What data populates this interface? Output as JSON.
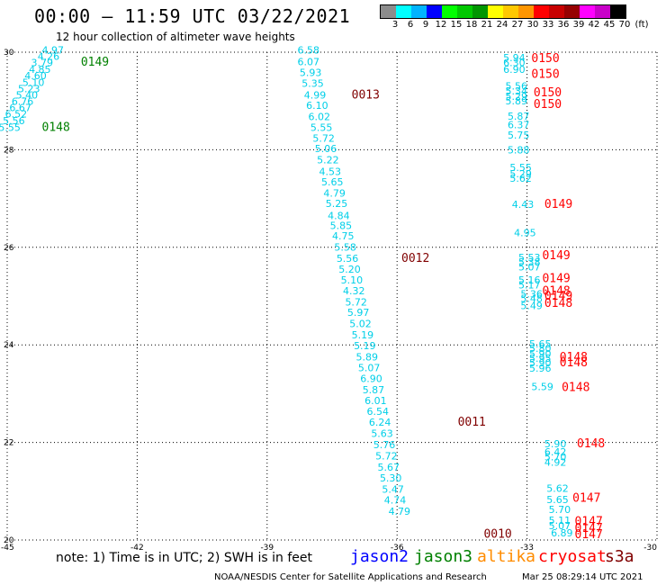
{
  "header": {
    "title": "00:00 – 11:59 UTC 03/22/2021",
    "subtitle": "12 hour collection of altimeter wave heights"
  },
  "color_scale": {
    "colors": [
      "#8c8c8c",
      "#00ffff",
      "#00b4ff",
      "#0000ff",
      "#00ff00",
      "#00c800",
      "#009600",
      "#ffff00",
      "#ffc800",
      "#ff9600",
      "#ff0000",
      "#c80000",
      "#960000",
      "#ff00ff",
      "#c800c8",
      "#000000"
    ],
    "labels": [
      "3",
      "6",
      "9",
      "12",
      "15",
      "18",
      "21",
      "24",
      "27",
      "30",
      "33",
      "36",
      "39",
      "42",
      "45",
      "70",
      "(ft)"
    ]
  },
  "axes": {
    "x_ticks": [
      "-45",
      "-42",
      "-39",
      "-36",
      "-33",
      "-30"
    ],
    "y_ticks": [
      "30",
      "28",
      "26",
      "24",
      "22",
      "20"
    ]
  },
  "observations": [
    {
      "lon": -44.2,
      "lat": 29.97,
      "v": "4.97"
    },
    {
      "lon": -44.3,
      "lat": 29.84,
      "v": "4.26"
    },
    {
      "lon": -44.45,
      "lat": 29.71,
      "v": "3.79"
    },
    {
      "lon": -44.5,
      "lat": 29.58,
      "v": "4.85"
    },
    {
      "lon": -44.6,
      "lat": 29.45,
      "v": "4.60"
    },
    {
      "lon": -44.65,
      "lat": 29.31,
      "v": "5.10"
    },
    {
      "lon": -44.75,
      "lat": 29.18,
      "v": "5.23"
    },
    {
      "lon": -44.8,
      "lat": 29.05,
      "v": "5.40"
    },
    {
      "lon": -44.9,
      "lat": 28.92,
      "v": "6.76"
    },
    {
      "lon": -44.95,
      "lat": 28.79,
      "v": "6.67"
    },
    {
      "lon": -45.05,
      "lat": 28.66,
      "v": "6.52"
    },
    {
      "lon": -45.1,
      "lat": 28.52,
      "v": "5.56"
    },
    {
      "lon": -45.2,
      "lat": 28.39,
      "v": "5.55"
    },
    {
      "lon": -38.3,
      "lat": 29.97,
      "v": "6.58"
    },
    {
      "lon": -38.3,
      "lat": 29.73,
      "v": "6.07"
    },
    {
      "lon": -38.25,
      "lat": 29.51,
      "v": "5.93"
    },
    {
      "lon": -38.2,
      "lat": 29.29,
      "v": "5.35"
    },
    {
      "lon": -38.15,
      "lat": 29.05,
      "v": "4.99"
    },
    {
      "lon": -38.1,
      "lat": 28.84,
      "v": "6.10"
    },
    {
      "lon": -38.05,
      "lat": 28.61,
      "v": "6.02"
    },
    {
      "lon": -38.0,
      "lat": 28.39,
      "v": "5.55"
    },
    {
      "lon": -37.95,
      "lat": 28.16,
      "v": "5.72"
    },
    {
      "lon": -37.9,
      "lat": 27.95,
      "v": "5.06"
    },
    {
      "lon": -37.85,
      "lat": 27.72,
      "v": "5.22"
    },
    {
      "lon": -37.8,
      "lat": 27.48,
      "v": "4.53"
    },
    {
      "lon": -37.75,
      "lat": 27.27,
      "v": "5.65"
    },
    {
      "lon": -37.7,
      "lat": 27.04,
      "v": "4.79"
    },
    {
      "lon": -37.65,
      "lat": 26.83,
      "v": "5.25"
    },
    {
      "lon": -37.6,
      "lat": 26.58,
      "v": "4.84"
    },
    {
      "lon": -37.55,
      "lat": 26.37,
      "v": "5.85"
    },
    {
      "lon": -37.5,
      "lat": 26.16,
      "v": "4.75"
    },
    {
      "lon": -37.45,
      "lat": 25.93,
      "v": "5.58"
    },
    {
      "lon": -37.4,
      "lat": 25.7,
      "v": "5.56"
    },
    {
      "lon": -37.35,
      "lat": 25.48,
      "v": "5.20"
    },
    {
      "lon": -37.3,
      "lat": 25.26,
      "v": "5.10"
    },
    {
      "lon": -37.25,
      "lat": 25.04,
      "v": "4.32"
    },
    {
      "lon": -37.2,
      "lat": 24.81,
      "v": "5.72"
    },
    {
      "lon": -37.15,
      "lat": 24.59,
      "v": "5.97"
    },
    {
      "lon": -37.1,
      "lat": 24.36,
      "v": "5.02"
    },
    {
      "lon": -37.05,
      "lat": 24.13,
      "v": "5.19"
    },
    {
      "lon": -37.0,
      "lat": 23.91,
      "v": "5.19"
    },
    {
      "lon": -36.95,
      "lat": 23.68,
      "v": "5.89"
    },
    {
      "lon": -36.9,
      "lat": 23.46,
      "v": "5.07"
    },
    {
      "lon": -36.85,
      "lat": 23.24,
      "v": "6.90"
    },
    {
      "lon": -36.8,
      "lat": 23.01,
      "v": "5.87"
    },
    {
      "lon": -36.75,
      "lat": 22.79,
      "v": "6.01"
    },
    {
      "lon": -36.7,
      "lat": 22.56,
      "v": "6.54"
    },
    {
      "lon": -36.65,
      "lat": 22.34,
      "v": "6.24"
    },
    {
      "lon": -36.6,
      "lat": 22.11,
      "v": "5.63"
    },
    {
      "lon": -36.55,
      "lat": 21.88,
      "v": "5.76"
    },
    {
      "lon": -36.5,
      "lat": 21.65,
      "v": "5.72"
    },
    {
      "lon": -36.45,
      "lat": 21.42,
      "v": "5.67"
    },
    {
      "lon": -36.4,
      "lat": 21.2,
      "v": "5.30"
    },
    {
      "lon": -36.35,
      "lat": 20.97,
      "v": "5.47"
    },
    {
      "lon": -36.3,
      "lat": 20.75,
      "v": "4.74"
    },
    {
      "lon": -36.2,
      "lat": 20.52,
      "v": "4.79"
    },
    {
      "lon": -33.55,
      "lat": 29.82,
      "v": "5.94"
    },
    {
      "lon": -33.55,
      "lat": 29.71,
      "v": "6.30"
    },
    {
      "lon": -33.55,
      "lat": 29.58,
      "v": "6.90"
    },
    {
      "lon": -33.5,
      "lat": 29.23,
      "v": "5.56"
    },
    {
      "lon": -33.5,
      "lat": 29.13,
      "v": "5.34"
    },
    {
      "lon": -33.5,
      "lat": 29.02,
      "v": "5.29"
    },
    {
      "lon": -33.5,
      "lat": 28.93,
      "v": "5.89"
    },
    {
      "lon": -33.45,
      "lat": 28.62,
      "v": "5.87"
    },
    {
      "lon": -33.45,
      "lat": 28.44,
      "v": "6.37"
    },
    {
      "lon": -33.45,
      "lat": 28.23,
      "v": "5.75"
    },
    {
      "lon": -33.45,
      "lat": 27.92,
      "v": "5.88"
    },
    {
      "lon": -33.4,
      "lat": 27.56,
      "v": "5.55"
    },
    {
      "lon": -33.4,
      "lat": 27.44,
      "v": "5.29"
    },
    {
      "lon": -33.4,
      "lat": 27.34,
      "v": "5.62"
    },
    {
      "lon": -33.35,
      "lat": 26.81,
      "v": "4.43"
    },
    {
      "lon": -33.3,
      "lat": 26.23,
      "v": "4.95"
    },
    {
      "lon": -33.2,
      "lat": 25.72,
      "v": "5.53"
    },
    {
      "lon": -33.2,
      "lat": 25.63,
      "v": "5.38"
    },
    {
      "lon": -33.2,
      "lat": 25.53,
      "v": "5.07"
    },
    {
      "lon": -33.2,
      "lat": 25.26,
      "v": "5.16"
    },
    {
      "lon": -33.2,
      "lat": 25.16,
      "v": "5.17"
    },
    {
      "lon": -33.15,
      "lat": 24.97,
      "v": "5.36"
    },
    {
      "lon": -33.15,
      "lat": 24.88,
      "v": "5.48"
    },
    {
      "lon": -33.15,
      "lat": 24.73,
      "v": "5.49"
    },
    {
      "lon": -32.95,
      "lat": 23.95,
      "v": "5.65"
    },
    {
      "lon": -32.95,
      "lat": 23.86,
      "v": "5.80"
    },
    {
      "lon": -32.95,
      "lat": 23.75,
      "v": "5.90"
    },
    {
      "lon": -32.95,
      "lat": 23.65,
      "v": "5.95"
    },
    {
      "lon": -32.95,
      "lat": 23.56,
      "v": "5.90"
    },
    {
      "lon": -32.95,
      "lat": 23.45,
      "v": "5.96"
    },
    {
      "lon": -32.9,
      "lat": 23.07,
      "v": "5.59"
    },
    {
      "lon": -32.6,
      "lat": 21.9,
      "v": "5.90"
    },
    {
      "lon": -32.6,
      "lat": 21.73,
      "v": "6.42"
    },
    {
      "lon": -32.6,
      "lat": 21.63,
      "v": "5.70"
    },
    {
      "lon": -32.6,
      "lat": 21.52,
      "v": "4.92"
    },
    {
      "lon": -32.55,
      "lat": 20.99,
      "v": "5.62"
    },
    {
      "lon": -32.55,
      "lat": 20.76,
      "v": "5.65"
    },
    {
      "lon": -32.5,
      "lat": 20.55,
      "v": "5.70"
    },
    {
      "lon": -32.5,
      "lat": 20.33,
      "v": "5.11"
    },
    {
      "lon": -32.5,
      "lat": 20.22,
      "v": "5.07"
    },
    {
      "lon": -32.45,
      "lat": 20.07,
      "v": "6.89"
    }
  ],
  "passes": [
    {
      "lon": -43.3,
      "lat": 29.72,
      "id": "0149",
      "color": "#008000"
    },
    {
      "lon": -44.2,
      "lat": 28.39,
      "id": "0148",
      "color": "#008000"
    },
    {
      "lon": -37.05,
      "lat": 29.05,
      "id": "0013",
      "color": "#800000"
    },
    {
      "lon": -35.9,
      "lat": 25.7,
      "id": "0012",
      "color": "#800000"
    },
    {
      "lon": -34.6,
      "lat": 22.34,
      "id": "0011",
      "color": "#800000"
    },
    {
      "lon": -34.0,
      "lat": 20.05,
      "id": "0010",
      "color": "#800000"
    },
    {
      "lon": -32.9,
      "lat": 29.8,
      "id": "0150",
      "color": "#ff0000"
    },
    {
      "lon": -32.9,
      "lat": 29.47,
      "id": "0150",
      "color": "#ff0000"
    },
    {
      "lon": -32.85,
      "lat": 29.1,
      "id": "0150",
      "color": "#ff0000"
    },
    {
      "lon": -32.85,
      "lat": 28.86,
      "id": "0150",
      "color": "#ff0000"
    },
    {
      "lon": -32.6,
      "lat": 26.81,
      "id": "0149",
      "color": "#ff0000"
    },
    {
      "lon": -32.65,
      "lat": 25.76,
      "id": "0149",
      "color": "#ff0000"
    },
    {
      "lon": -32.65,
      "lat": 25.29,
      "id": "0149",
      "color": "#ff0000"
    },
    {
      "lon": -32.65,
      "lat": 25.03,
      "id": "0148",
      "color": "#ff0000"
    },
    {
      "lon": -32.6,
      "lat": 24.93,
      "id": "0149",
      "color": "#ff0000"
    },
    {
      "lon": -32.6,
      "lat": 24.78,
      "id": "0148",
      "color": "#ff0000"
    },
    {
      "lon": -32.25,
      "lat": 23.67,
      "id": "0148",
      "color": "#ff0000"
    },
    {
      "lon": -32.25,
      "lat": 23.56,
      "id": "0148",
      "color": "#ff0000"
    },
    {
      "lon": -32.2,
      "lat": 23.05,
      "id": "0148",
      "color": "#ff0000"
    },
    {
      "lon": -31.85,
      "lat": 21.9,
      "id": "0148",
      "color": "#ff0000"
    },
    {
      "lon": -31.95,
      "lat": 20.78,
      "id": "0147",
      "color": "#ff0000"
    },
    {
      "lon": -31.9,
      "lat": 20.3,
      "id": "0147",
      "color": "#ff0000"
    },
    {
      "lon": -31.9,
      "lat": 20.17,
      "id": "0147",
      "color": "#ff0000"
    },
    {
      "lon": -31.9,
      "lat": 20.04,
      "id": "0147",
      "color": "#ff0000"
    }
  ],
  "note": "note:  1) Time is in UTC;  2) SWH is in feet",
  "legend": [
    {
      "label": "jason2",
      "color": "#0000ff"
    },
    {
      "label": "jason3",
      "color": "#008000"
    },
    {
      "label": "altika",
      "color": "#ff8c00"
    },
    {
      "label": "cryosat",
      "color": "#ff0000"
    },
    {
      "label": "s3a",
      "color": "#800000"
    }
  ],
  "footer": {
    "credit": "NOAA/NESDIS Center for Satellite Applications and Research",
    "timestamp": "Mar 25 08:29:14 UTC 2021"
  }
}
